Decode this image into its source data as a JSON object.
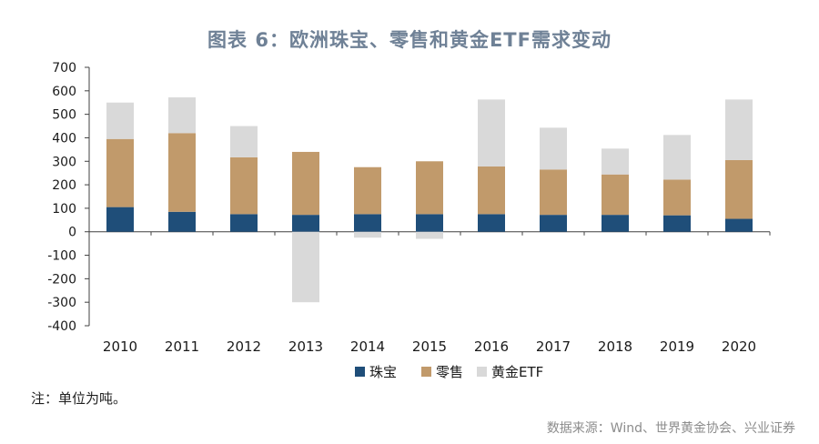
{
  "header": {
    "title": "图表 6：欧洲珠宝、零售和黄金ETF需求变动"
  },
  "footer": {
    "note": "注：单位为吨。",
    "source": "数据来源：Wind、世界黄金协会、兴业证券"
  },
  "chart_data": {
    "type": "bar",
    "stacked": true,
    "title": "图表 6：欧洲珠宝、零售和黄金ETF需求变动",
    "xlabel": "",
    "ylabel": "",
    "categories": [
      "2010",
      "2011",
      "2012",
      "2013",
      "2014",
      "2015",
      "2016",
      "2017",
      "2018",
      "2019",
      "2020"
    ],
    "ylim": [
      -400,
      700
    ],
    "yticks": [
      700,
      600,
      500,
      400,
      300,
      200,
      100,
      0,
      -100,
      -200,
      -300,
      -400
    ],
    "series": [
      {
        "name": "珠宝",
        "color": "#1f4e79",
        "values": [
          105,
          85,
          75,
          72,
          75,
          75,
          75,
          72,
          72,
          70,
          55
        ]
      },
      {
        "name": "零售",
        "color": "#c19a6b",
        "values": [
          290,
          335,
          242,
          268,
          200,
          225,
          203,
          193,
          172,
          152,
          250
        ]
      },
      {
        "name": "黄金ETF",
        "color": "#d9d9d9",
        "values": [
          155,
          152,
          133,
          -300,
          -25,
          -30,
          285,
          178,
          110,
          190,
          258
        ]
      }
    ],
    "legend_position": "bottom",
    "grid": false
  }
}
